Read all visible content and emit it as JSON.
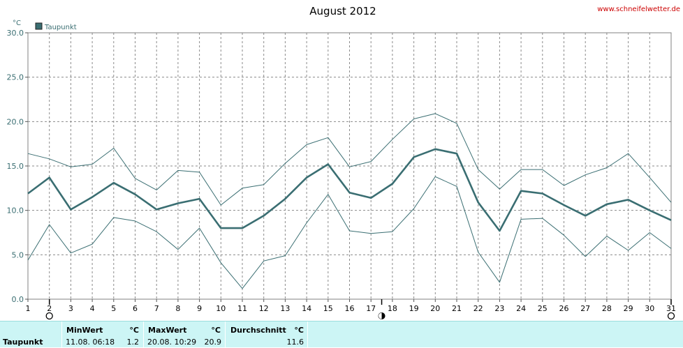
{
  "header": {
    "title": "August 2012",
    "source": "www.schneifelwetter.de"
  },
  "chart_data": {
    "type": "line",
    "title": "August 2012",
    "ylabel": "°C",
    "ylim": [
      0,
      30
    ],
    "yticks": [
      "0.0",
      "5.0",
      "10.0",
      "15.0",
      "20.0",
      "25.0",
      "30.0"
    ],
    "x": [
      1,
      2,
      3,
      4,
      5,
      6,
      7,
      8,
      9,
      10,
      11,
      12,
      13,
      14,
      15,
      16,
      17,
      18,
      19,
      20,
      21,
      22,
      23,
      24,
      25,
      26,
      27,
      28,
      29,
      30,
      31
    ],
    "legend": [
      "Taupunkt"
    ],
    "legend_placement": "top-left",
    "grid": true,
    "series": [
      {
        "name": "Taupunkt",
        "role": "mean",
        "color": "#3a6e72",
        "values": [
          11.9,
          13.7,
          10.1,
          11.5,
          13.1,
          11.8,
          10.1,
          10.8,
          11.3,
          8.0,
          8.0,
          9.4,
          11.3,
          13.7,
          15.2,
          12.0,
          11.4,
          13.0,
          16.0,
          16.9,
          16.4,
          10.9,
          7.7,
          12.2,
          11.9,
          10.6,
          9.4,
          10.7,
          11.2,
          10.0,
          8.9
        ]
      },
      {
        "role": "max",
        "color": "#3a6e72",
        "values": [
          16.4,
          15.8,
          14.9,
          15.2,
          17.0,
          13.6,
          12.3,
          14.5,
          14.3,
          10.6,
          12.5,
          12.9,
          15.3,
          17.4,
          18.2,
          14.9,
          15.5,
          18.0,
          20.3,
          20.9,
          19.8,
          14.6,
          12.4,
          14.6,
          14.6,
          12.8,
          14.0,
          14.8,
          16.4,
          13.7,
          10.9
        ]
      },
      {
        "role": "min",
        "color": "#3a6e72",
        "values": [
          4.4,
          8.4,
          5.2,
          6.2,
          9.2,
          8.8,
          7.6,
          5.6,
          8.0,
          4.1,
          1.2,
          4.3,
          4.9,
          8.6,
          11.8,
          7.7,
          7.4,
          7.6,
          10.2,
          13.8,
          12.7,
          5.3,
          1.9,
          9.0,
          9.1,
          7.2,
          4.8,
          7.1,
          5.5,
          7.5,
          5.7
        ]
      }
    ],
    "moon_phases": [
      {
        "day": 2,
        "phase": "full"
      },
      {
        "day": 17.5,
        "phase": "half"
      },
      {
        "day": 31,
        "phase": "full"
      }
    ]
  },
  "stats": {
    "row_label": "Taupunkt",
    "min": {
      "header": "MinWert",
      "unit": "°C",
      "when": "11.08.  06:18",
      "value": "1.2"
    },
    "max": {
      "header": "MaxWert",
      "unit": "°C",
      "when": "20.08.  10:29",
      "value": "20.9"
    },
    "avg": {
      "header": "Durchschnitt",
      "unit": "°C",
      "value": "11.6"
    }
  },
  "colors": {
    "line": "#3a6e72",
    "stats_bg": "#ccf5f5",
    "source_link": "#cc0000"
  }
}
